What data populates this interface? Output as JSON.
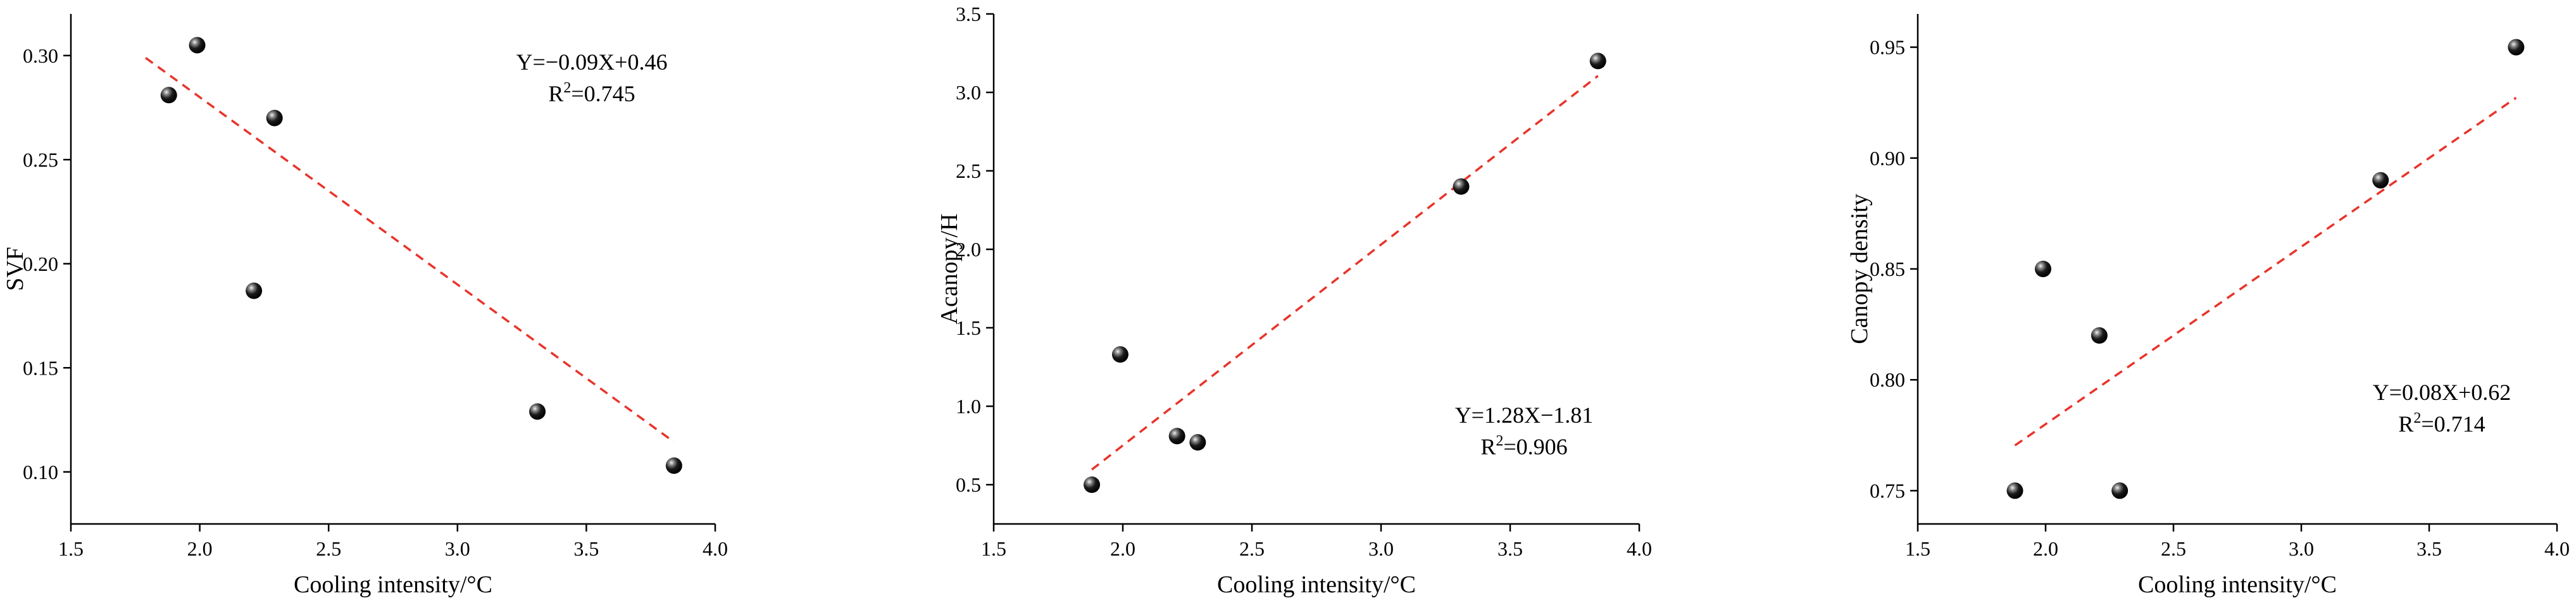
{
  "chart_data": [
    {
      "type": "scatter",
      "title": "",
      "xlabel": "Cooling intensity/°C",
      "ylabel": "SVF",
      "xlim": [
        1.5,
        4.0
      ],
      "ylim": [
        0.075,
        0.32
      ],
      "xticks": [
        1.5,
        2.0,
        2.5,
        3.0,
        3.5,
        4.0
      ],
      "xtick_labels": [
        "1.5",
        "2.0",
        "2.5",
        "3.0",
        "3.5",
        "4.0"
      ],
      "yticks": [
        0.1,
        0.15,
        0.2,
        0.25,
        0.3
      ],
      "ytick_labels": [
        "0.10",
        "0.15",
        "0.20",
        "0.25",
        "0.30"
      ],
      "x": [
        1.88,
        1.99,
        2.21,
        2.29,
        3.31,
        3.84
      ],
      "y": [
        0.281,
        0.305,
        0.187,
        0.27,
        0.129,
        0.103
      ],
      "fit": {
        "slope": -0.09,
        "intercept": 0.46,
        "x_range": [
          1.79,
          3.84
        ]
      },
      "equation": "Y=−0.09X+0.46",
      "r2_prefix": "R",
      "r2_sup": "2",
      "r2_value": "=0.745",
      "legend_pos": "top-right"
    },
    {
      "type": "scatter",
      "title": "",
      "xlabel": "Cooling intensity/°C",
      "ylabel": "Acanopy/H",
      "xlim": [
        1.5,
        4.0
      ],
      "ylim": [
        0.25,
        3.5
      ],
      "xticks": [
        1.5,
        2.0,
        2.5,
        3.0,
        3.5,
        4.0
      ],
      "xtick_labels": [
        "1.5",
        "2.0",
        "2.5",
        "3.0",
        "3.5",
        "4.0"
      ],
      "yticks": [
        0.5,
        1.0,
        1.5,
        2.0,
        2.5,
        3.0,
        3.5
      ],
      "ytick_labels": [
        "0.5",
        "1.0",
        "1.5",
        "2.0",
        "2.5",
        "3.0",
        "3.5"
      ],
      "x": [
        1.88,
        1.99,
        2.21,
        2.29,
        3.31,
        3.84
      ],
      "y": [
        0.5,
        1.33,
        0.81,
        0.77,
        2.4,
        3.2
      ],
      "fit": {
        "slope": 1.28,
        "intercept": -1.81,
        "x_range": [
          1.88,
          3.84
        ]
      },
      "equation": "Y=1.28X−1.81",
      "r2_prefix": "R",
      "r2_sup": "2",
      "r2_value": "=0.906",
      "legend_pos": "bottom-right"
    },
    {
      "type": "scatter",
      "title": "",
      "xlabel": "Cooling intensity/°C",
      "ylabel": "Canopy density",
      "xlim": [
        1.5,
        4.0
      ],
      "ylim": [
        0.735,
        0.965
      ],
      "xticks": [
        1.5,
        2.0,
        2.5,
        3.0,
        3.5,
        4.0
      ],
      "xtick_labels": [
        "1.5",
        "2.0",
        "2.5",
        "3.0",
        "3.5",
        "4.0"
      ],
      "yticks": [
        0.75,
        0.8,
        0.85,
        0.9,
        0.95
      ],
      "ytick_labels": [
        "0.75",
        "0.80",
        "0.85",
        "0.90",
        "0.95"
      ],
      "x": [
        1.88,
        1.99,
        2.21,
        2.29,
        3.31,
        3.84
      ],
      "y": [
        0.75,
        0.85,
        0.82,
        0.75,
        0.89,
        0.95
      ],
      "fit": {
        "slope": 0.08,
        "intercept": 0.62,
        "x_range": [
          1.88,
          3.84
        ]
      },
      "equation": "Y=0.08X+0.62",
      "r2_prefix": "R",
      "r2_sup": "2",
      "r2_value": "=0.714",
      "legend_pos": "bottom-right"
    }
  ],
  "colors": {
    "fit_line": "#e8342a",
    "marker": "#111111",
    "axis": "#000000"
  }
}
